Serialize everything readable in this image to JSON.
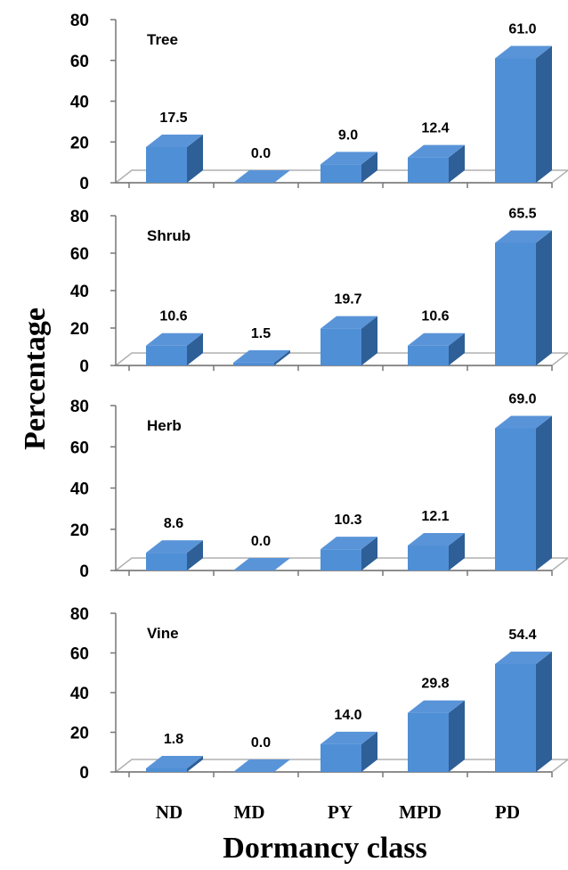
{
  "chart_data": {
    "type": "bar",
    "categories": [
      "ND",
      "MD",
      "PY",
      "MPD",
      "PD"
    ],
    "xlabel": "Dormancy class",
    "ylabel": "Percentage",
    "ylim": [
      0,
      80
    ],
    "yticks": [
      0,
      20,
      40,
      60,
      80
    ],
    "bar_color": "#4F8FD6",
    "panels": [
      {
        "label": "Tree",
        "values": [
          17.5,
          0.0,
          9.0,
          12.4,
          61.0
        ],
        "value_labels": [
          "17.5",
          "0.0",
          "9.0",
          "12.4",
          "61.0"
        ]
      },
      {
        "label": "Shrub",
        "values": [
          10.6,
          1.5,
          19.7,
          10.6,
          65.5
        ],
        "value_labels": [
          "10.6",
          "1.5",
          "19.7",
          "10.6",
          "65.5"
        ]
      },
      {
        "label": "Herb",
        "values": [
          8.6,
          0.0,
          10.3,
          12.1,
          69.0
        ],
        "value_labels": [
          "8.6",
          "0.0",
          "10.3",
          "12.1",
          "69.0"
        ]
      },
      {
        "label": "Vine",
        "values": [
          1.8,
          0.0,
          14.0,
          29.8,
          54.4
        ],
        "value_labels": [
          "1.8",
          "0.0",
          "14.0",
          "29.8",
          "54.4"
        ]
      }
    ]
  }
}
